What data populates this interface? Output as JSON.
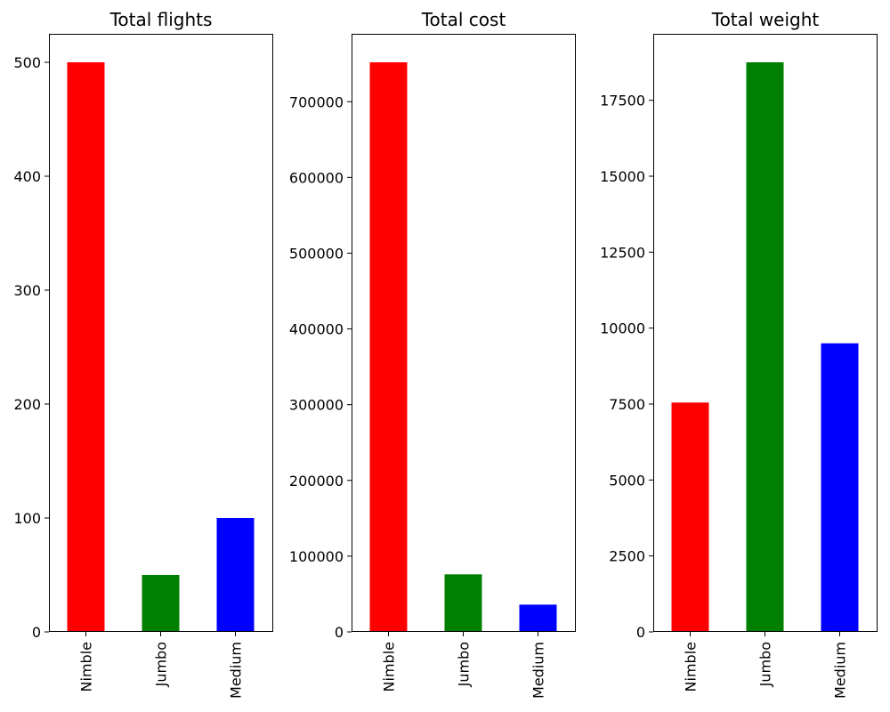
{
  "chart_data": [
    {
      "type": "bar",
      "title": "Total flights",
      "xlabel": "",
      "ylabel": "",
      "categories": [
        "Nimble",
        "Jumbo",
        "Medium"
      ],
      "values": [
        500,
        50,
        100
      ],
      "colors": [
        "#ff0000",
        "#008000",
        "#0000ff"
      ],
      "ylim": [
        0,
        525
      ],
      "yticks": [
        0,
        100,
        200,
        300,
        400,
        500
      ],
      "ytick_labels": [
        "0",
        "100",
        "200",
        "300",
        "400",
        "500"
      ],
      "grid": false,
      "legend": "none"
    },
    {
      "type": "bar",
      "title": "Total cost",
      "xlabel": "",
      "ylabel": "",
      "categories": [
        "Nimble",
        "Jumbo",
        "Medium"
      ],
      "values": [
        752000,
        76000,
        36000
      ],
      "colors": [
        "#ff0000",
        "#008000",
        "#0000ff"
      ],
      "ylim": [
        0,
        789600
      ],
      "yticks": [
        0,
        100000,
        200000,
        300000,
        400000,
        500000,
        600000,
        700000
      ],
      "ytick_labels": [
        "0",
        "100000",
        "200000",
        "300000",
        "400000",
        "500000",
        "600000",
        "700000"
      ],
      "grid": false,
      "legend": "none"
    },
    {
      "type": "bar",
      "title": "Total weight",
      "xlabel": "",
      "ylabel": "",
      "categories": [
        "Nimble",
        "Jumbo",
        "Medium"
      ],
      "values": [
        7550,
        18750,
        9500
      ],
      "colors": [
        "#ff0000",
        "#008000",
        "#0000ff"
      ],
      "ylim": [
        0,
        19687.5
      ],
      "yticks": [
        0,
        2500,
        5000,
        7500,
        10000,
        12500,
        15000,
        17500
      ],
      "ytick_labels": [
        "0",
        "2500",
        "5000",
        "7500",
        "10000",
        "12500",
        "15000",
        "17500"
      ],
      "grid": false,
      "legend": "none"
    }
  ]
}
